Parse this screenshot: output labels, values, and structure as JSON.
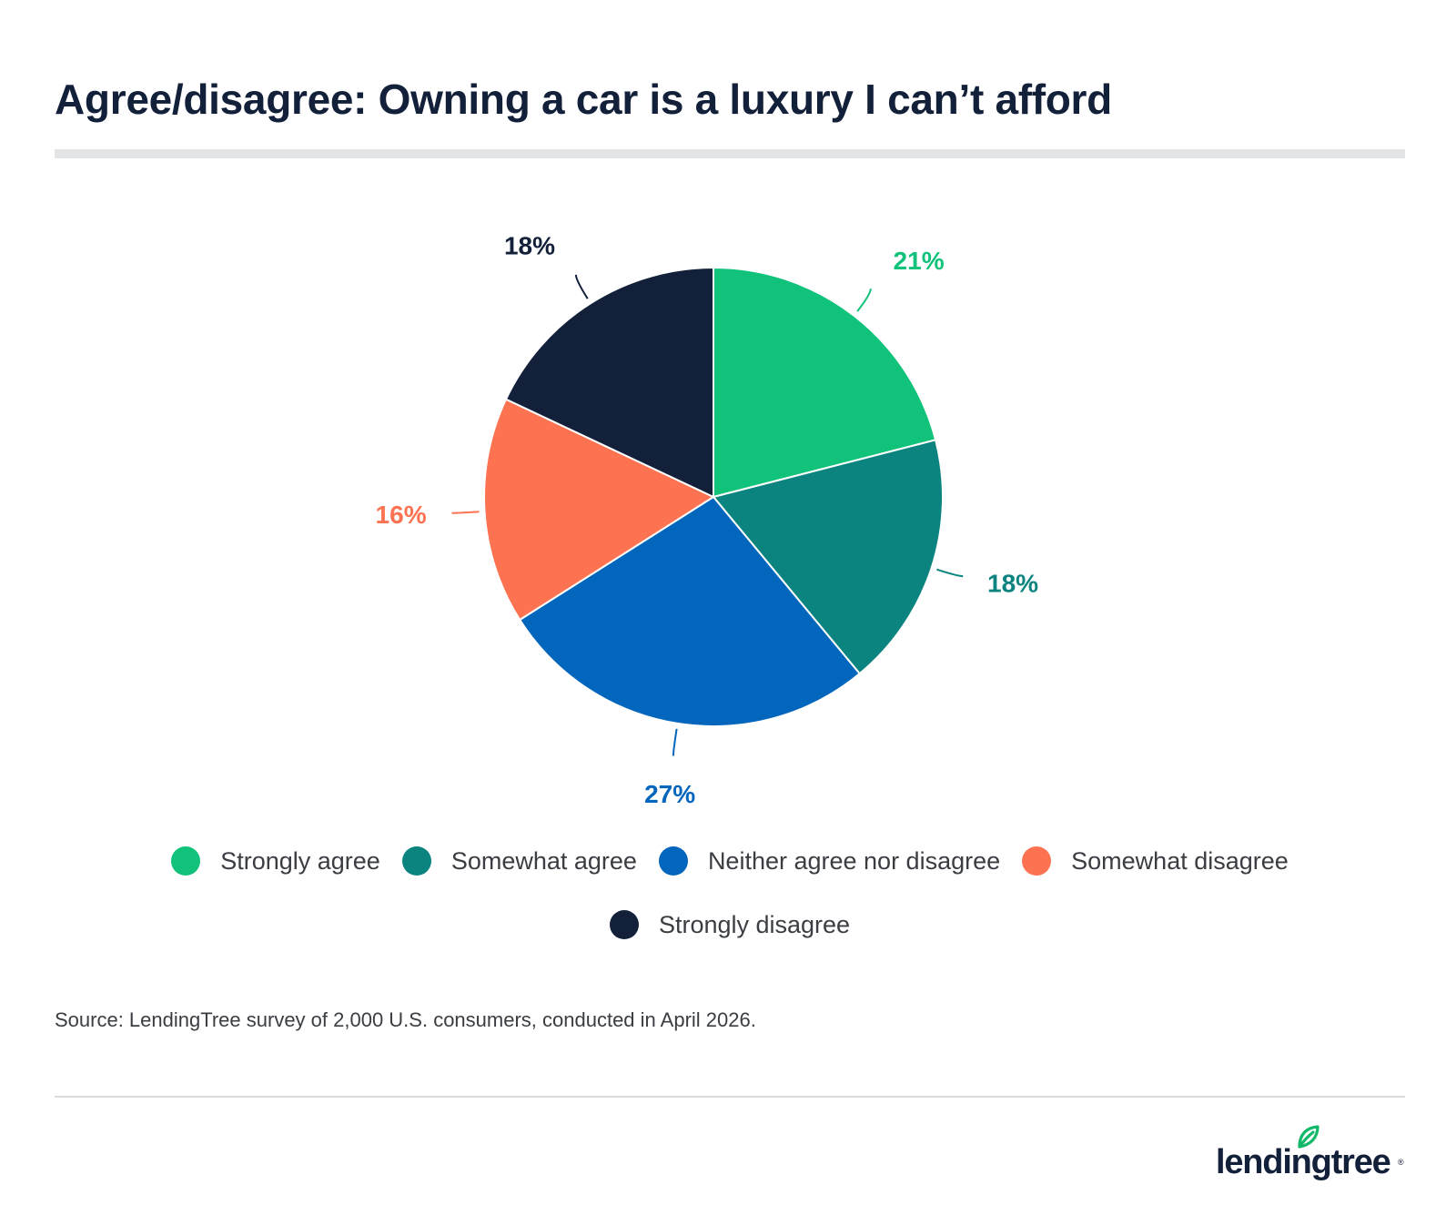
{
  "title": "Agree/disagree: Owning a car is a luxury I can’t afford",
  "source": "Source: LendingTree survey of 2,000 U.S. consumers, conducted in April 2026.",
  "logo": {
    "text": "lendingtree",
    "mark": "®",
    "icon": "leaf-icon",
    "color": "#13b96a"
  },
  "chart_data": {
    "type": "pie",
    "title": "Agree/disagree: Owning a car is a luxury I can’t afford",
    "start": "12 o'clock",
    "direction": "clockwise",
    "legend_position": "bottom",
    "categories": [
      "Strongly agree",
      "Somewhat agree",
      "Neither agree nor disagree",
      "Somewhat disagree",
      "Strongly disagree"
    ],
    "values": [
      21,
      18,
      27,
      16,
      18
    ],
    "labels": [
      "21%",
      "18%",
      "27%",
      "16%",
      "18%"
    ],
    "colors": [
      "#10c27a",
      "#0b847f",
      "#0366bd",
      "#fd7352",
      "#13203a"
    ]
  }
}
